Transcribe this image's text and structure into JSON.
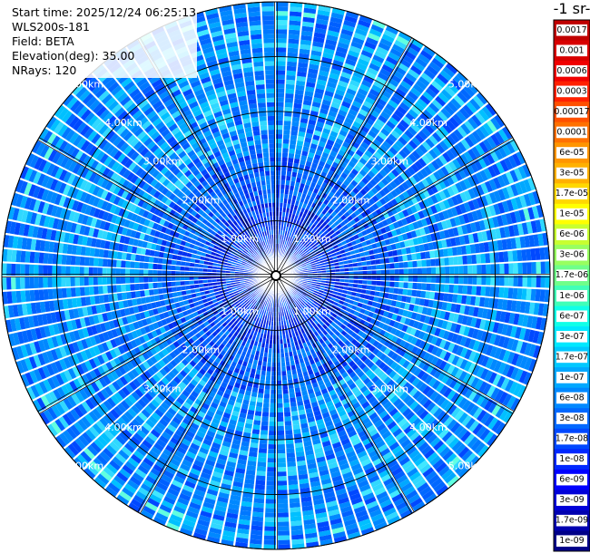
{
  "info": {
    "start_time": "Start time: 2025/12/24 06:25:13",
    "instrument": "WLS200s-181",
    "field": "Field: BETA",
    "elevation": "Elevation(deg): 35.00",
    "nrays": "NRays: 120"
  },
  "colorbar": {
    "title": "-1 sr-",
    "ticks": [
      "0.0017",
      "0.001",
      "0.0006",
      "0.0003",
      "0.00017",
      "0.0001",
      "6e-05",
      "3e-05",
      "1.7e-05",
      "1e-05",
      "6e-06",
      "3e-06",
      "1.7e-06",
      "1e-06",
      "6e-07",
      "3e-07",
      "1.7e-07",
      "1e-07",
      "6e-08",
      "3e-08",
      "1.7e-08",
      "1e-08",
      "6e-09",
      "3e-09",
      "1.7e-09",
      "1e-09"
    ],
    "colors": [
      "#c00000",
      "#d80000",
      "#f00000",
      "#ff2000",
      "#ff5000",
      "#ff7000",
      "#ff9500",
      "#ffb000",
      "#ffd800",
      "#ffff00",
      "#c8ff30",
      "#98ff60",
      "#6fff8a",
      "#40ffb8",
      "#10ffe8",
      "#00e8ff",
      "#00c8ff",
      "#00a8ff",
      "#0088ff",
      "#0068ff",
      "#0048ff",
      "#0028ff",
      "#0000ff",
      "#0000d8",
      "#0000b0",
      "#000088"
    ]
  },
  "chart_data": {
    "type": "ppi",
    "field": "BETA",
    "nrays": 120,
    "elevation_deg": 35.0,
    "max_range_km": 5.0,
    "range_rings_km": [
      1,
      2,
      3,
      4,
      5
    ],
    "ring_labels": [
      "1.00km",
      "2.00km",
      "3.00km",
      "4.00km",
      "5.00km"
    ],
    "dominant_value_range": [
      "3e-08",
      "1.7e-07"
    ]
  }
}
